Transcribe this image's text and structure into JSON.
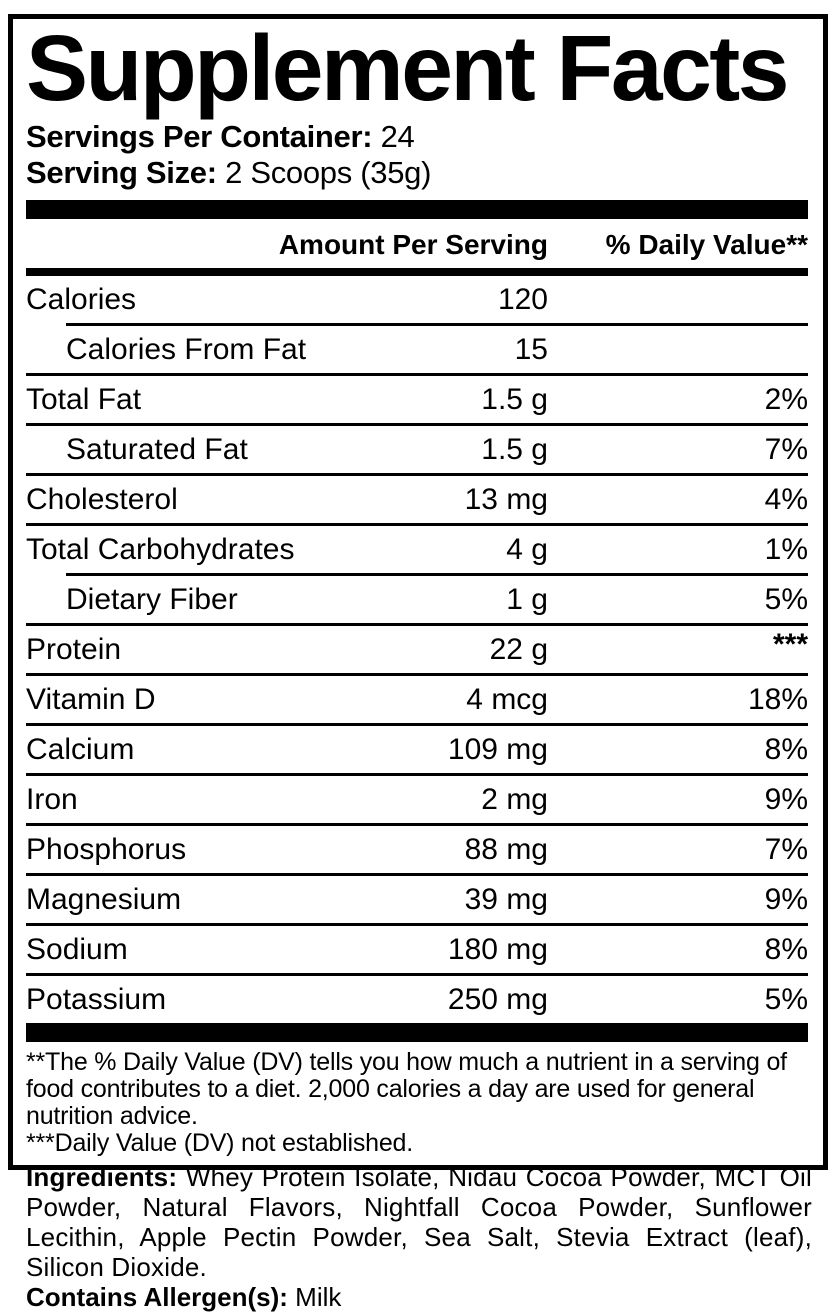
{
  "colors": {
    "background": "#ffffff",
    "text": "#000000",
    "border": "#000000"
  },
  "title": "Supplement Facts",
  "serving_info": {
    "servings_per_container_label": "Servings Per Container:",
    "servings_per_container_value": " 24",
    "serving_size_label": "Serving Size:",
    "serving_size_value": " 2 Scoops (35g)"
  },
  "table": {
    "header": {
      "amount": "Amount Per Serving",
      "daily_value": "% Daily Value**"
    },
    "rows": [
      {
        "label": "Calories",
        "amount": "120",
        "daily_value": ""
      },
      {
        "label": "Calories From Fat",
        "amount": "15",
        "daily_value": ""
      },
      {
        "label": "Total Fat",
        "amount": "1.5 g",
        "daily_value": "2%"
      },
      {
        "label": "Saturated Fat",
        "amount": "1.5 g",
        "daily_value": "7%"
      },
      {
        "label": "Cholesterol",
        "amount": "13 mg",
        "daily_value": "4%"
      },
      {
        "label": "Total Carbohydrates",
        "amount": "4 g",
        "daily_value": "1%"
      },
      {
        "label": "Dietary Fiber",
        "amount": "1 g",
        "daily_value": "5%"
      },
      {
        "label": "Protein",
        "amount": "22 g",
        "daily_value": "***"
      },
      {
        "label": "Vitamin D",
        "amount": "4 mcg",
        "daily_value": "18%"
      },
      {
        "label": "Calcium",
        "amount": "109 mg",
        "daily_value": "8%"
      },
      {
        "label": "Iron",
        "amount": "2 mg",
        "daily_value": "9%"
      },
      {
        "label": "Phosphorus",
        "amount": "88 mg",
        "daily_value": "7%"
      },
      {
        "label": "Magnesium",
        "amount": "39 mg",
        "daily_value": "9%"
      },
      {
        "label": "Sodium",
        "amount": "180 mg",
        "daily_value": "8%"
      },
      {
        "label": "Potassium",
        "amount": "250 mg",
        "daily_value": "5%"
      }
    ]
  },
  "footnotes": {
    "daily_value_note": "**The % Daily Value (DV) tells you how much a nutrient in a serving of food contributes to a diet. 2,000 calories a day are used for general nutrition advice.",
    "not_established_note": "***Daily Value (DV) not established."
  },
  "ingredients": {
    "label": "Ingredients:",
    "text": " Whey Protein Isolate, Nidau Cocoa Powder, MCT Oil Powder, Natural Flavors, Nightfall Cocoa Powder, Sunflower Lecithin, Apple Pectin Powder, Sea Salt, Stevia Extract (leaf), Silicon Dioxide."
  },
  "allergen": {
    "label": "Contains Allergen(s):",
    "value": " Milk"
  }
}
